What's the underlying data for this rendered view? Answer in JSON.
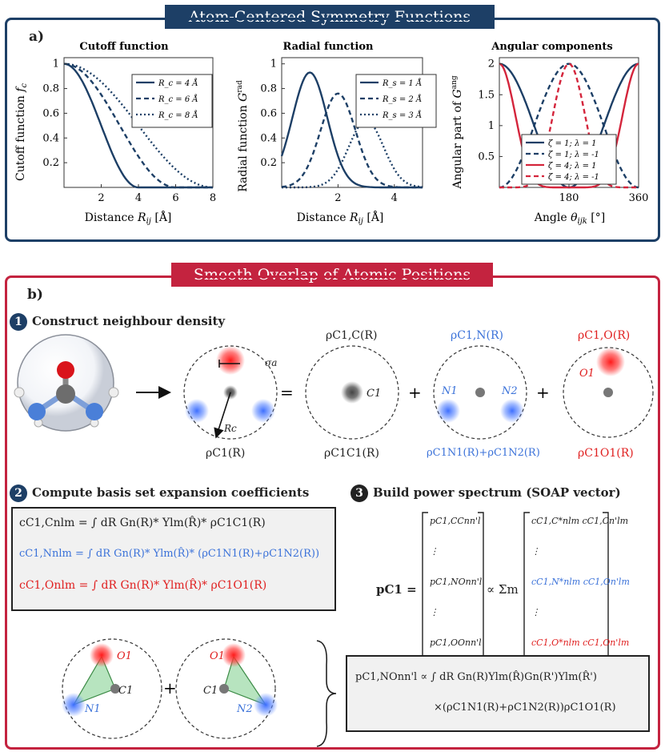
{
  "panel_a": {
    "banner": "Atom-Centered Symmetry Functions",
    "label": "a)",
    "cutoff": {
      "title": "Cutoff function",
      "ylabel": "Cutoff function f_c",
      "xlabel": "Distance R_ij [Å]",
      "xticks": [
        "2",
        "4",
        "6",
        "8"
      ],
      "yticks": [
        "0.2",
        "0.4",
        "0.6",
        "0.8",
        "1"
      ],
      "legend": [
        "R_c = 4 Å",
        "R_c = 6 Å",
        "R_c = 8 Å"
      ]
    },
    "radial": {
      "title": "Radial function",
      "ylabel": "Radial function G^rad",
      "xlabel": "Distance R_ij [Å]",
      "xticks": [
        "2",
        "4"
      ],
      "yticks": [
        "0.2",
        "0.4",
        "0.6",
        "0.8",
        "1"
      ],
      "legend": [
        "R_s = 1 Å",
        "R_s = 2 Å",
        "R_s = 3 Å"
      ]
    },
    "angular": {
      "title": "Angular components",
      "ylabel": "Angular part of G^ang",
      "xlabel": "Angle θ_ijk [°]",
      "xticks": [
        "180",
        "360"
      ],
      "yticks": [
        "0.5",
        "1",
        "1.5",
        "2"
      ],
      "legend": [
        "ζ = 1; λ = 1",
        "ζ = 1; λ = -1",
        "ζ = 4; λ = 1",
        "ζ = 4; λ = -1"
      ]
    }
  },
  "chart_data": [
    {
      "type": "line",
      "title": "Cutoff function",
      "xlabel": "Distance R_ij [Å]",
      "ylabel": "Cutoff function f_c",
      "xlim": [
        0,
        8
      ],
      "ylim": [
        0,
        1.05
      ],
      "series": [
        {
          "name": "R_c = 4 Å",
          "rc": 4
        },
        {
          "name": "R_c = 6 Å",
          "rc": 6
        },
        {
          "name": "R_c = 8 Å",
          "rc": 8
        }
      ]
    },
    {
      "type": "line",
      "title": "Radial function",
      "xlabel": "Distance R_ij [Å]",
      "ylabel": "Radial function G^rad",
      "xlim": [
        0,
        5
      ],
      "ylim": [
        0,
        1.05
      ],
      "series": [
        {
          "name": "R_s = 1 Å",
          "rs": 1
        },
        {
          "name": "R_s = 2 Å",
          "rs": 2
        },
        {
          "name": "R_s = 3 Å",
          "rs": 3
        }
      ]
    },
    {
      "type": "line",
      "title": "Angular components",
      "xlabel": "Angle θ_ijk [°]",
      "ylabel": "Angular part of G^ang",
      "xlim": [
        0,
        360
      ],
      "ylim": [
        0,
        2.1
      ],
      "series": [
        {
          "name": "ζ = 1; λ = 1",
          "zeta": 1,
          "lambda": 1
        },
        {
          "name": "ζ = 1; λ = -1",
          "zeta": 1,
          "lambda": -1
        },
        {
          "name": "ζ = 4; λ = 1",
          "zeta": 4,
          "lambda": 1
        },
        {
          "name": "ζ = 4; λ = -1",
          "zeta": 4,
          "lambda": -1
        }
      ]
    }
  ],
  "panel_b": {
    "banner": "Smooth Overlap of Atomic Positions",
    "label": "b)",
    "step1": {
      "num": "1",
      "title": "Construct neighbour density"
    },
    "step2": {
      "num": "2",
      "title": "Compute basis set expansion coefficients"
    },
    "step3": {
      "num": "3",
      "title": "Build power spectrum (SOAP vector)"
    },
    "sigma": "σa",
    "rc": "Rc",
    "c1": "C1",
    "n1": "N1",
    "n2": "N2",
    "o1": "O1",
    "rho_total": "ρC1(R)",
    "rho_c_top": "ρC1,C(R)",
    "rho_n_top": "ρC1,N(R)",
    "rho_o_top": "ρC1,O(R)",
    "rho_c_bot": "ρC1C1(R)",
    "rho_n_bot": "ρC1N1(R)+ρC1N2(R)",
    "rho_o_bot": "ρC1O1(R)",
    "eq_c": "cC1,Cnlm = ∫ dR Gn(R)* Ylm(R̂)* ρC1C1(R)",
    "eq_n": "cC1,Nnlm = ∫ dR Gn(R)* Ylm(R̂)* (ρC1N1(R)+ρC1N2(R))",
    "eq_o": "cC1,Onlm = ∫ dR Gn(R)* Ylm(R̂)* ρC1O1(R)",
    "spectrum_lhs": "pC1 =",
    "vec_items": [
      "pC1,CCnn'l",
      "⋮",
      "pC1,NOnn'l",
      "⋮",
      "pC1,OOnn'l"
    ],
    "propto_sum": "∝ Σm",
    "coef_items": [
      "cC1,C*nlm cC1,Cn'lm",
      "⋮",
      "cC1,N*nlm cC1,On'lm",
      "⋮",
      "cC1,O*nlm cC1,On'lm"
    ],
    "final_eq_line1": "pC1,NOnn'l ∝ ∫ dR Gn(R)Ylm(R̂)Gn(R')Ylm(R̂')",
    "final_eq_line2": "×(ρC1N1(R)+ρC1N2(R))ρC1O1(R)"
  },
  "colors": {
    "navy": "#1d3f66",
    "crimson": "#c4233f",
    "blue": "#3b72d9",
    "red": "#e02020"
  }
}
